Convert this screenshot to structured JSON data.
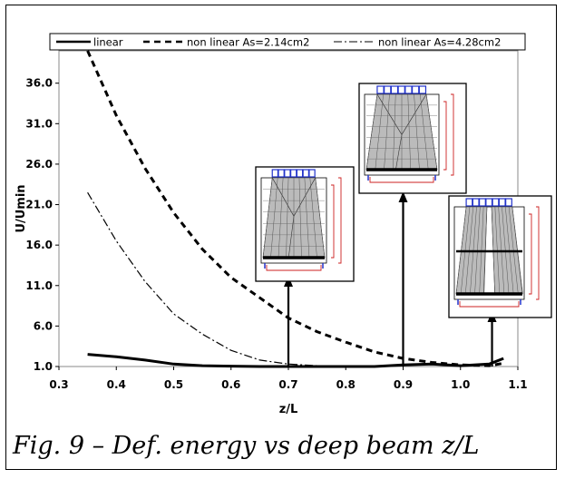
{
  "caption": "Fig. 9 – Def. energy vs deep beam z/L",
  "chart_data": {
    "type": "line",
    "xlabel": "z/L",
    "ylabel": "U/Umin",
    "xlim": [
      0.3,
      1.1
    ],
    "ylim": [
      1.0,
      40.0
    ],
    "xticks": [
      "0.3",
      "0.4",
      "0.5",
      "0.6",
      "0.7",
      "0.8",
      "0.9",
      "1.0",
      "1.1"
    ],
    "yticks": [
      "1.0",
      "6.0",
      "11.0",
      "16.0",
      "21.0",
      "26.0",
      "31.0",
      "36.0"
    ],
    "xtick_values": [
      0.3,
      0.4,
      0.5,
      0.6,
      0.7,
      0.8,
      0.9,
      1.0,
      1.1
    ],
    "ytick_values": [
      1,
      6,
      11,
      16,
      21,
      26,
      31,
      36
    ],
    "grid": false,
    "legend_position": "top",
    "series": [
      {
        "name": "linear",
        "style": "solid",
        "x": [
          0.35,
          0.4,
          0.45,
          0.5,
          0.55,
          0.6,
          0.65,
          0.7,
          0.75,
          0.8,
          0.85,
          0.9,
          0.95,
          1.0,
          1.05,
          1.075
        ],
        "y": [
          2.5,
          2.2,
          1.8,
          1.3,
          1.1,
          1.05,
          1.0,
          1.0,
          1.0,
          1.0,
          1.0,
          1.2,
          1.3,
          1.1,
          1.3,
          2.0
        ]
      },
      {
        "name": "non linear As=2.14cm2",
        "style": "dashed",
        "x": [
          0.35,
          0.4,
          0.45,
          0.5,
          0.55,
          0.6,
          0.65,
          0.7,
          0.75,
          0.8,
          0.85,
          0.9,
          0.95,
          1.0,
          1.05,
          1.075
        ],
        "y": [
          40.0,
          32.0,
          25.5,
          20.0,
          15.5,
          12.0,
          9.5,
          7.0,
          5.3,
          4.0,
          2.8,
          2.0,
          1.5,
          1.2,
          1.1,
          1.4
        ]
      },
      {
        "name": "non linear As=4.28cm2",
        "style": "dashdot",
        "x": [
          0.35,
          0.4,
          0.45,
          0.5,
          0.55,
          0.6,
          0.65,
          0.7,
          0.75
        ],
        "y": [
          22.5,
          16.5,
          11.5,
          7.5,
          5.0,
          3.0,
          1.8,
          1.3,
          1.1
        ]
      }
    ],
    "annotations": [
      {
        "type": "arrow",
        "x": 0.7
      },
      {
        "type": "arrow",
        "x": 0.9
      },
      {
        "type": "arrow",
        "x": 1.055
      }
    ],
    "insets": [
      {
        "type": "deep-beam-sketch",
        "points_to_x": 0.7
      },
      {
        "type": "deep-beam-sketch",
        "points_to_x": 0.9
      },
      {
        "type": "deep-beam-sketch",
        "points_to_x": 1.055
      }
    ]
  }
}
